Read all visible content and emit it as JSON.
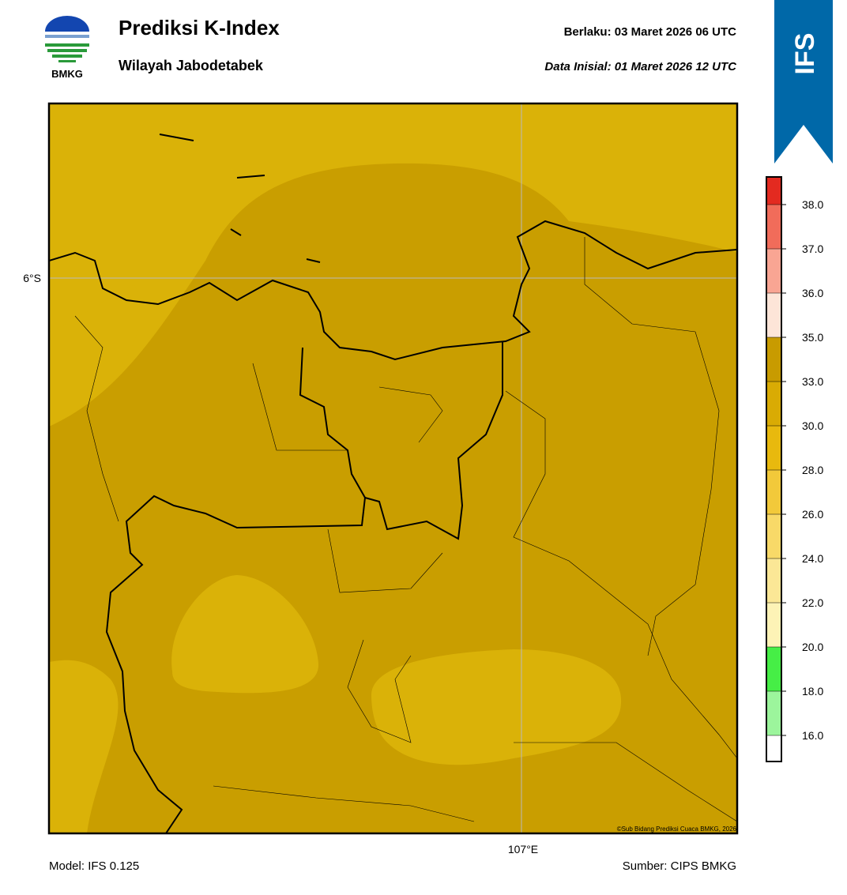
{
  "header": {
    "logo_text": "BMKG",
    "title": "Prediksi K-Index",
    "subtitle": "Wilayah Jabodetabek",
    "valid_label": "Berlaku:  03 Maret 2026 06 UTC",
    "init_label": "Data Inisial:  01 Maret 2026 12 UTC",
    "ribbon": "IFS"
  },
  "map": {
    "lat_label": "6°S",
    "lon_label": "107°E",
    "credit": "©Sub Bidang Prediksi Cuaca BMKG, 2026"
  },
  "colorbar": {
    "ticks": [
      {
        "value": 16,
        "label": "16.0"
      },
      {
        "value": 18,
        "label": "18.0"
      },
      {
        "value": 20,
        "label": "20.0"
      },
      {
        "value": 22,
        "label": "22.0"
      },
      {
        "value": 24,
        "label": "24.0"
      },
      {
        "value": 26,
        "label": "26.0"
      },
      {
        "value": 28,
        "label": "28.0"
      },
      {
        "value": 30,
        "label": "30.0"
      },
      {
        "value": 33,
        "label": "33.0"
      },
      {
        "value": 35,
        "label": "35.0"
      },
      {
        "value": 36,
        "label": "36.0"
      },
      {
        "value": 37,
        "label": "37.0"
      },
      {
        "value": 38,
        "label": "38.0"
      }
    ],
    "colors": [
      "#ffffff",
      "#9cf59c",
      "#46ee46",
      "#fdf3b6",
      "#fbe796",
      "#f8d968",
      "#f2c93a",
      "#e8b90e",
      "#d9ab04",
      "#c89b00",
      "#fde5d8",
      "#f9a593",
      "#f16c5a",
      "#e32a20"
    ]
  },
  "footer": {
    "model": "Model: IFS 0.125",
    "source": "Sumber: CIPS BMKG"
  }
}
